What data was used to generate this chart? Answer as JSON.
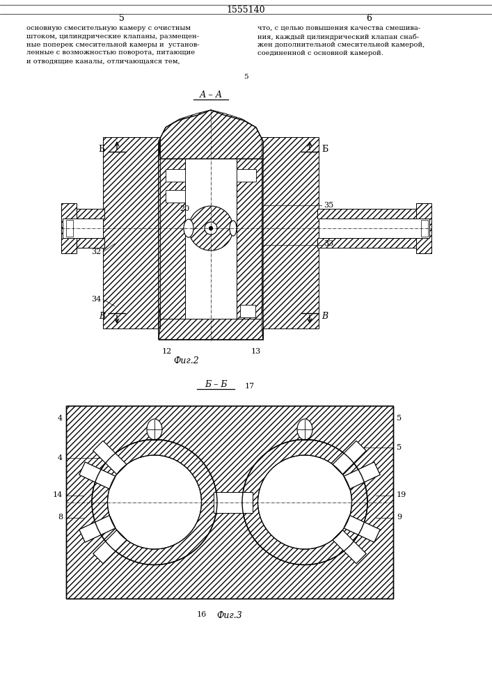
{
  "patent_number": "1555140",
  "page_left": "5",
  "page_right": "6",
  "text_left": "основную смесительную камеру с очистным\nштоком, цилиндрические клапаны, размещен-\nные поперек смесительной камеры и  установ-\nленные с возможностью поворота, питающие\nи отводящие каналы, отличающаяся тем,",
  "text_right": "что, с целью повышения качества смешива-\nния, каждый цилиндрический клапан снаб-\nжен дополнительной смесительной камерой,\nсоединенной с основной камерой.",
  "fig2_label": "Фиг.2",
  "fig2_section": "А – А",
  "fig3_label": "Фиг.3",
  "fig3_section": "Б – Б",
  "bg_color": "#ffffff",
  "line_color": "#000000"
}
